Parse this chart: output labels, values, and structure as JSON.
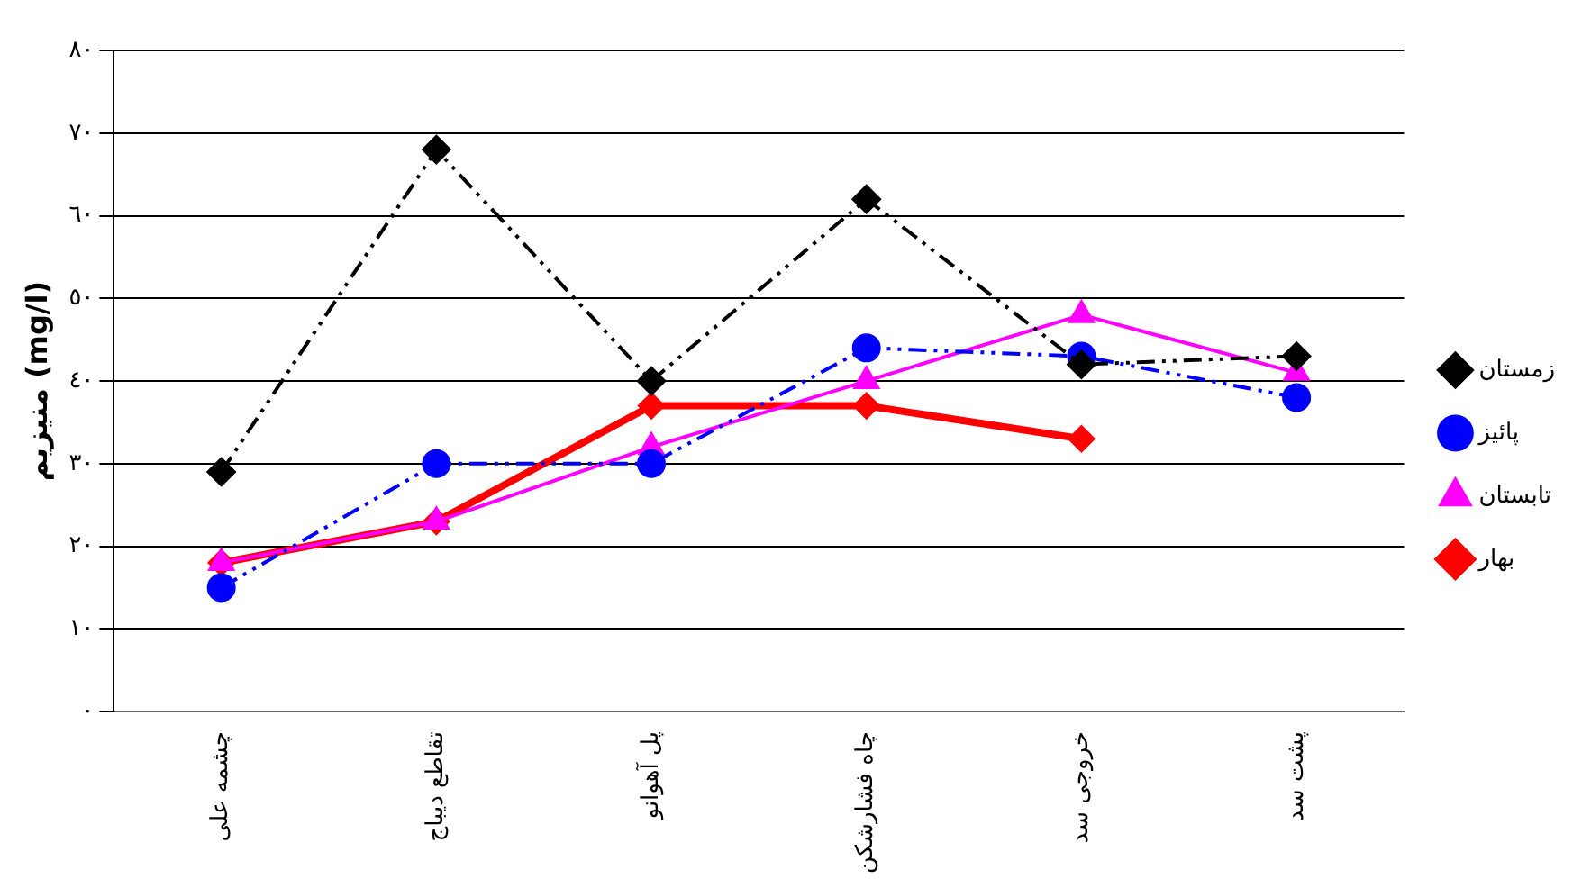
{
  "chart_data": {
    "type": "line",
    "ylabel": "منیزیم (mg/l)",
    "categories": [
      "چشمه علی",
      "تقاطع دیباج",
      "پل آهوانو",
      "چاه فشارشکن",
      "خروجی سد",
      "پشت سد"
    ],
    "series": [
      {
        "name": "بهار",
        "color": "#ff0000",
        "values": [
          18,
          23,
          37,
          37,
          33,
          null
        ],
        "marker": "diamond",
        "line_style": "solid"
      },
      {
        "name": "تابستان",
        "color": "#ff00ff",
        "values": [
          18,
          23,
          32,
          40,
          48,
          41
        ],
        "marker": "triangle",
        "line_style": "solid"
      },
      {
        "name": "پائیز",
        "color": "#0000ff",
        "values": [
          15,
          30,
          30,
          44,
          43,
          38
        ],
        "marker": "circle",
        "line_style": "dashed"
      },
      {
        "name": "زمستان",
        "color": "#000000",
        "values": [
          29,
          68,
          40,
          62,
          42,
          43
        ],
        "marker": "diamond",
        "line_style": "dashed"
      }
    ],
    "ylim": [
      0,
      80
    ],
    "yticks": [
      {
        "value": 0,
        "label": "٠"
      },
      {
        "value": 10,
        "label": "١٠"
      },
      {
        "value": 20,
        "label": "٢٠"
      },
      {
        "value": 30,
        "label": "٣٠"
      },
      {
        "value": 40,
        "label": "٤٠"
      },
      {
        "value": 50,
        "label": "٥٠"
      },
      {
        "value": 60,
        "label": "٦٠"
      },
      {
        "value": 70,
        "label": "٧٠"
      },
      {
        "value": 80,
        "label": "٨٠"
      }
    ],
    "grid": "y",
    "legend": "right"
  }
}
